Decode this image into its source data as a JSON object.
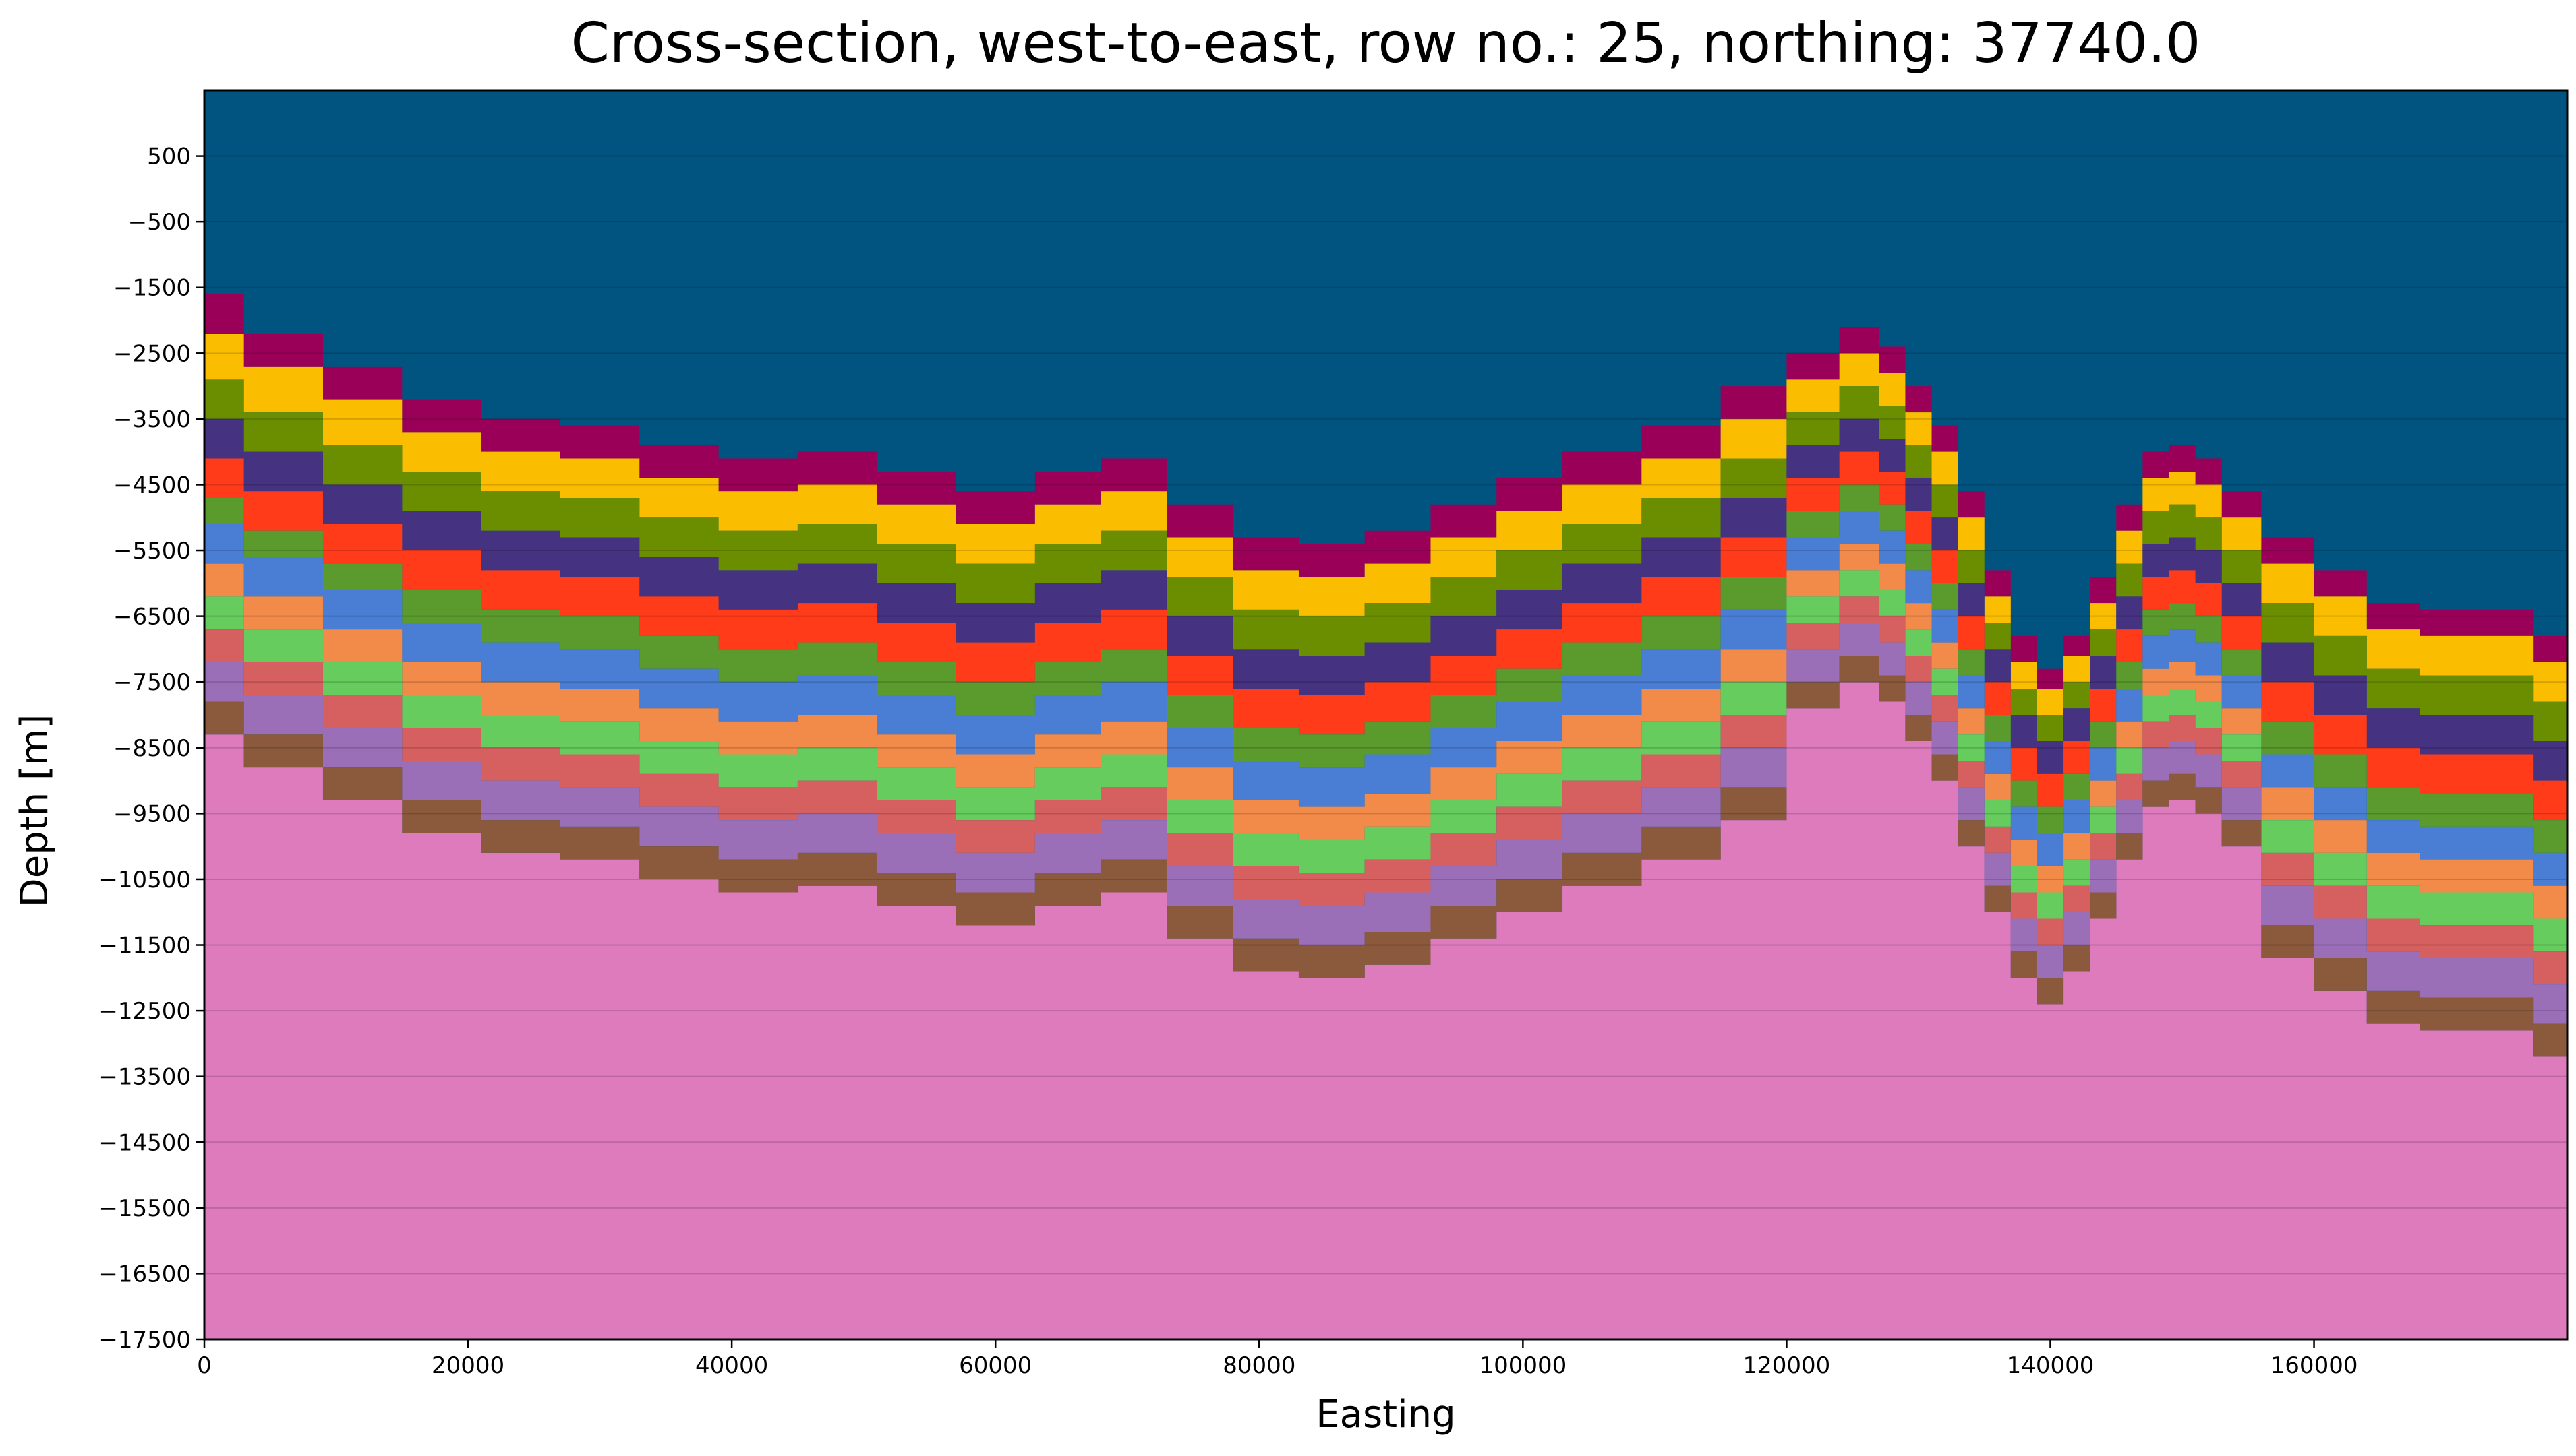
{
  "chart_data": {
    "type": "area",
    "title": "Cross-section, west-to-east, row no.: 25, northing: 37740.0",
    "xlabel": "Easting",
    "ylabel": "Depth [m]",
    "xlim": [
      0,
      179200
    ],
    "ylim": [
      -17500,
      1500
    ],
    "x_ticks": [
      0,
      20000,
      40000,
      60000,
      80000,
      100000,
      120000,
      140000,
      160000
    ],
    "x_tick_labels": [
      "0",
      "20000",
      "40000",
      "60000",
      "80000",
      "100000",
      "120000",
      "140000",
      "160000"
    ],
    "y_ticks": [
      500,
      -500,
      -1500,
      -2500,
      -3500,
      -4500,
      -5500,
      -6500,
      -7500,
      -8500,
      -9500,
      -10500,
      -11500,
      -12500,
      -13500,
      -14500,
      -15500,
      -16500,
      -17500
    ],
    "y_tick_labels": [
      "500",
      "−500",
      "−1500",
      "−2500",
      "−3500",
      "−4500",
      "−5500",
      "−6500",
      "−7500",
      "−8500",
      "−9500",
      "−10500",
      "−11500",
      "−12500",
      "−13500",
      "−14500",
      "−15500",
      "−16500",
      "−17500"
    ],
    "grid": "horizontal",
    "top_color": "#015480",
    "x": [
      0,
      6000,
      12000,
      18000,
      24000,
      30000,
      36000,
      42000,
      48000,
      54000,
      60000,
      66000,
      70000,
      76000,
      80000,
      86000,
      90000,
      96000,
      100000,
      106000,
      112000,
      118000,
      122000,
      126000,
      128000,
      130000,
      132000,
      134000,
      136000,
      138000,
      140000,
      142000,
      144000,
      146000,
      148000,
      150000,
      152000,
      154000,
      158000,
      162000,
      166000,
      170000,
      174000,
      179200
    ],
    "surface_top": [
      -1600,
      -2200,
      -2700,
      -3200,
      -3500,
      -3600,
      -3900,
      -4100,
      -4000,
      -4300,
      -4600,
      -4300,
      -4100,
      -4800,
      -5300,
      -5400,
      -5200,
      -4800,
      -4400,
      -4000,
      -3600,
      -3000,
      -2500,
      -2100,
      -2400,
      -3000,
      -3600,
      -4600,
      -5800,
      -6800,
      -7300,
      -6800,
      -5900,
      -4800,
      -4000,
      -3900,
      -4100,
      -4600,
      -5300,
      -5800,
      -6300,
      -6400,
      -6400,
      -6800
    ],
    "layers": [
      {
        "color": "#9b0058",
        "thickness": [
          600,
          500,
          500,
          500,
          500,
          500,
          500,
          500,
          500,
          500,
          500,
          500,
          500,
          500,
          500,
          500,
          500,
          500,
          500,
          500,
          500,
          500,
          400,
          400,
          400,
          400,
          400,
          400,
          400,
          400,
          300,
          300,
          400,
          400,
          400,
          400,
          400,
          400,
          400,
          400,
          400,
          400,
          400,
          400
        ]
      },
      {
        "color": "#fbbd00",
        "thickness": [
          700,
          700,
          700,
          600,
          600,
          600,
          600,
          600,
          600,
          600,
          600,
          600,
          600,
          600,
          600,
          600,
          600,
          600,
          600,
          600,
          600,
          600,
          500,
          500,
          500,
          500,
          500,
          500,
          400,
          400,
          400,
          400,
          400,
          500,
          500,
          500,
          500,
          500,
          600,
          600,
          600,
          600,
          600,
          600
        ]
      },
      {
        "color": "#6b8e00",
        "thickness": [
          600,
          600,
          600,
          600,
          600,
          600,
          600,
          600,
          600,
          600,
          600,
          600,
          600,
          600,
          600,
          600,
          600,
          600,
          600,
          600,
          600,
          600,
          500,
          500,
          500,
          500,
          500,
          500,
          400,
          400,
          400,
          400,
          400,
          500,
          500,
          500,
          500,
          500,
          600,
          600,
          600,
          600,
          600,
          600
        ]
      },
      {
        "color": "#453280",
        "thickness": [
          600,
          600,
          600,
          600,
          600,
          600,
          600,
          600,
          600,
          600,
          600,
          600,
          600,
          600,
          600,
          600,
          600,
          600,
          600,
          600,
          600,
          600,
          500,
          500,
          500,
          500,
          500,
          500,
          500,
          500,
          500,
          500,
          500,
          500,
          500,
          500,
          500,
          500,
          600,
          600,
          600,
          600,
          600,
          600
        ]
      },
      {
        "color": "#ff3b1a",
        "thickness": [
          600,
          600,
          600,
          600,
          600,
          600,
          600,
          600,
          600,
          600,
          600,
          600,
          600,
          600,
          600,
          600,
          600,
          600,
          600,
          600,
          600,
          600,
          500,
          500,
          500,
          500,
          500,
          500,
          500,
          500,
          500,
          500,
          500,
          500,
          500,
          500,
          500,
          500,
          600,
          600,
          600,
          600,
          600,
          600
        ]
      },
      {
        "color": "#5b9a2c",
        "thickness": [
          400,
          400,
          400,
          500,
          500,
          500,
          500,
          500,
          500,
          500,
          500,
          500,
          500,
          500,
          500,
          500,
          500,
          500,
          500,
          500,
          500,
          500,
          400,
          400,
          400,
          400,
          400,
          400,
          400,
          400,
          400,
          400,
          400,
          400,
          400,
          400,
          400,
          400,
          500,
          500,
          500,
          500,
          500,
          500
        ]
      },
      {
        "color": "#4a7ed4",
        "thickness": [
          600,
          600,
          600,
          600,
          600,
          600,
          600,
          600,
          600,
          600,
          600,
          600,
          600,
          600,
          600,
          600,
          600,
          600,
          600,
          600,
          600,
          600,
          500,
          500,
          500,
          500,
          500,
          500,
          500,
          500,
          500,
          500,
          500,
          500,
          500,
          500,
          500,
          500,
          500,
          500,
          500,
          500,
          500,
          500
        ]
      },
      {
        "color": "#f28a4a",
        "thickness": [
          500,
          500,
          500,
          500,
          500,
          500,
          500,
          500,
          500,
          500,
          500,
          500,
          500,
          500,
          500,
          500,
          500,
          500,
          500,
          500,
          500,
          500,
          400,
          400,
          400,
          400,
          400,
          400,
          400,
          400,
          400,
          400,
          400,
          400,
          400,
          400,
          400,
          400,
          500,
          500,
          500,
          500,
          500,
          500
        ]
      },
      {
        "color": "#66cc5e",
        "thickness": [
          500,
          500,
          500,
          500,
          500,
          500,
          500,
          500,
          500,
          500,
          500,
          500,
          500,
          500,
          500,
          500,
          500,
          500,
          500,
          500,
          500,
          500,
          400,
          400,
          400,
          400,
          400,
          400,
          400,
          400,
          400,
          400,
          400,
          400,
          400,
          400,
          400,
          400,
          500,
          500,
          500,
          500,
          500,
          500
        ]
      },
      {
        "color": "#d65f5f",
        "thickness": [
          500,
          500,
          500,
          500,
          500,
          500,
          500,
          500,
          500,
          500,
          500,
          500,
          500,
          500,
          500,
          500,
          500,
          500,
          500,
          500,
          500,
          500,
          400,
          400,
          400,
          400,
          400,
          400,
          400,
          400,
          400,
          400,
          400,
          400,
          400,
          400,
          400,
          400,
          500,
          500,
          500,
          500,
          500,
          500
        ]
      },
      {
        "color": "#9b6fb8",
        "thickness": [
          600,
          600,
          600,
          600,
          600,
          600,
          600,
          600,
          600,
          600,
          600,
          600,
          600,
          600,
          600,
          600,
          600,
          600,
          600,
          600,
          600,
          600,
          500,
          500,
          500,
          500,
          500,
          500,
          500,
          500,
          500,
          500,
          500,
          500,
          500,
          500,
          500,
          500,
          600,
          600,
          600,
          600,
          600,
          600
        ]
      },
      {
        "color": "#8b5a3c",
        "thickness": [
          500,
          500,
          500,
          500,
          500,
          500,
          500,
          500,
          500,
          500,
          500,
          500,
          500,
          500,
          500,
          500,
          500,
          500,
          500,
          500,
          500,
          500,
          400,
          400,
          400,
          400,
          400,
          400,
          400,
          400,
          400,
          400,
          400,
          400,
          400,
          400,
          400,
          400,
          500,
          500,
          500,
          500,
          500,
          500
        ]
      }
    ],
    "bottom_color": "#dd7bbd"
  }
}
